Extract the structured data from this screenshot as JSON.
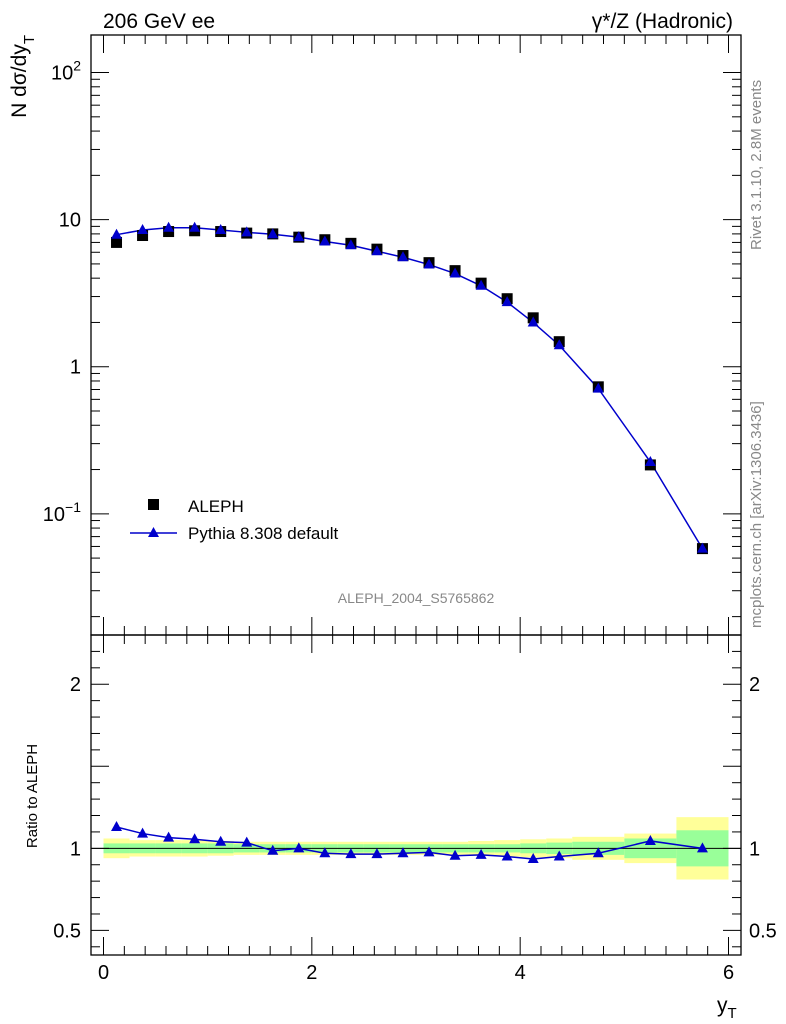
{
  "header": {
    "left": "206 GeV ee",
    "right": "γ*/Z (Hadronic)"
  },
  "side_labels": {
    "rivet": "Rivet 3.1.10,  2.8M events",
    "mcplots": "mcplots.cern.ch [arXiv:1306.3436]"
  },
  "analysis_id": "ALEPH_2004_S5765862",
  "colors": {
    "mc": "#0000cc",
    "data": "#000000",
    "band_inner": "#99ff99",
    "band_outer": "#ffff99"
  },
  "chart_data": [
    {
      "type": "scatter",
      "role": "main",
      "ylabel": "N dσ/dy",
      "ylabel_sub": "T",
      "yscale": "log",
      "ylim": [
        0.015,
        180
      ],
      "xlim": [
        -0.12,
        6.12
      ],
      "y_tick_labels": [
        "10",
        "1",
        "10"
      ],
      "y_tick_exponents": [
        "2",
        "",
        "−1"
      ],
      "y_tick_values": [
        100,
        10,
        1,
        0.1
      ],
      "legend": {
        "placement": "lower-left",
        "entries": [
          "ALEPH",
          "Pythia 8.308 default"
        ]
      },
      "series": [
        {
          "name": "ALEPH",
          "marker": "square",
          "x": [
            0.125,
            0.375,
            0.625,
            0.875,
            1.125,
            1.375,
            1.625,
            1.875,
            2.125,
            2.375,
            2.625,
            2.875,
            3.125,
            3.375,
            3.625,
            3.875,
            4.125,
            4.375,
            4.75,
            5.25,
            5.75
          ],
          "y": [
            7.0,
            7.8,
            8.3,
            8.4,
            8.3,
            8.1,
            8.0,
            7.6,
            7.3,
            6.9,
            6.3,
            5.7,
            5.1,
            4.5,
            3.7,
            2.9,
            2.15,
            1.48,
            0.73,
            0.215,
            0.058
          ]
        },
        {
          "name": "Pythia 8.308 default",
          "marker": "triangle",
          "x": [
            0.125,
            0.375,
            0.625,
            0.875,
            1.125,
            1.375,
            1.625,
            1.875,
            2.125,
            2.375,
            2.625,
            2.875,
            3.125,
            3.375,
            3.625,
            3.875,
            4.125,
            4.375,
            4.75,
            5.25,
            5.75
          ],
          "y": [
            7.9,
            8.5,
            8.8,
            8.8,
            8.5,
            8.2,
            7.95,
            7.6,
            7.1,
            6.7,
            6.1,
            5.55,
            4.95,
            4.3,
            3.55,
            2.75,
            2.0,
            1.4,
            0.71,
            0.225,
            0.058
          ]
        }
      ]
    },
    {
      "type": "line",
      "role": "ratio",
      "ylabel": "Ratio to ALEPH",
      "xlabel": "y",
      "xlabel_sub": "T",
      "ylim": [
        0.35,
        2.3
      ],
      "xlim": [
        -0.12,
        6.12
      ],
      "y_ticks": [
        "0.5",
        "1",
        "2"
      ],
      "y_tick_values": [
        0.5,
        1,
        2
      ],
      "x_ticks": [
        "0",
        "2",
        "4",
        "6"
      ],
      "x_tick_values": [
        0,
        2,
        4,
        6
      ],
      "bins": [
        [
          0,
          0.25
        ],
        [
          0.25,
          0.5
        ],
        [
          0.5,
          0.75
        ],
        [
          0.75,
          1.0
        ],
        [
          1.0,
          1.25
        ],
        [
          1.25,
          1.5
        ],
        [
          1.5,
          1.75
        ],
        [
          1.75,
          2.0
        ],
        [
          2.0,
          2.25
        ],
        [
          2.25,
          2.5
        ],
        [
          2.5,
          2.75
        ],
        [
          2.75,
          3.0
        ],
        [
          3.0,
          3.25
        ],
        [
          3.25,
          3.5
        ],
        [
          3.5,
          3.75
        ],
        [
          3.75,
          4.0
        ],
        [
          4.0,
          4.25
        ],
        [
          4.25,
          4.5
        ],
        [
          4.5,
          5.0
        ],
        [
          5.0,
          5.5
        ],
        [
          5.5,
          6.0
        ]
      ],
      "band_inner": [
        0.03,
        0.03,
        0.03,
        0.03,
        0.03,
        0.025,
        0.025,
        0.025,
        0.025,
        0.025,
        0.025,
        0.025,
        0.025,
        0.025,
        0.025,
        0.025,
        0.03,
        0.035,
        0.04,
        0.06,
        0.11
      ],
      "band_outer": [
        0.06,
        0.05,
        0.05,
        0.05,
        0.045,
        0.04,
        0.04,
        0.04,
        0.04,
        0.04,
        0.04,
        0.04,
        0.04,
        0.04,
        0.045,
        0.05,
        0.055,
        0.06,
        0.07,
        0.09,
        0.19
      ],
      "series": [
        {
          "name": "Pythia 8.308 default",
          "x": [
            0.125,
            0.375,
            0.625,
            0.875,
            1.125,
            1.375,
            1.625,
            1.875,
            2.125,
            2.375,
            2.625,
            2.875,
            3.125,
            3.375,
            3.625,
            3.875,
            4.125,
            4.375,
            4.75,
            5.25,
            5.75
          ],
          "y": [
            1.13,
            1.09,
            1.065,
            1.055,
            1.04,
            1.035,
            0.985,
            1.0,
            0.97,
            0.965,
            0.965,
            0.97,
            0.975,
            0.955,
            0.96,
            0.95,
            0.935,
            0.95,
            0.97,
            1.045,
            1.0
          ]
        }
      ]
    }
  ]
}
